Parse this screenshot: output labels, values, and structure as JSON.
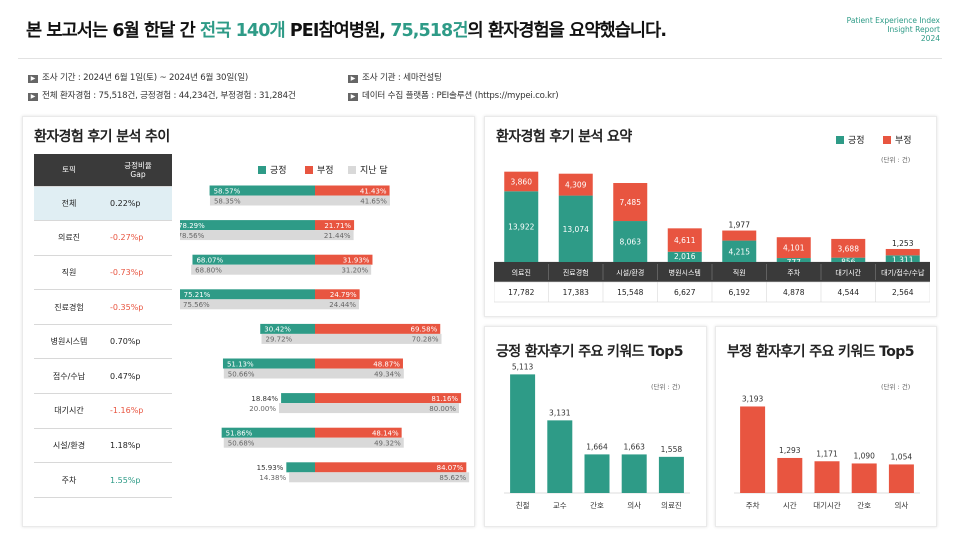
{
  "header": {
    "title_before": "본 보고서는 6월 한달 간 ",
    "title_hl1": "전국 140개",
    "title_mid": " PEI참여병원, ",
    "title_hl2": "75,518건",
    "title_after": "의 환자경험을 요약했습니다.",
    "brand_line1": "Patient Experience Index",
    "brand_line2": "Insight Report",
    "brand_line3": "2024"
  },
  "meta": {
    "period": "조사 기간 : 2024년 6월 1일(토) ~ 2024년 6월 30일(일)",
    "agency": "조사 기관 : 세마컨설팅",
    "totals": "전체 환자경험 : 75,518건, 긍정경험 : 44,234건, 부정경험 : 31,284건",
    "platform": "데이터 수집 플랫폼 : PEI솔루션 (https://mypei.co.kr)"
  },
  "colors": {
    "positive": "#2e9b87",
    "negative": "#e85540",
    "prev": "#d9d9d9",
    "header": "#3a3a3a"
  },
  "trend": {
    "title": "환자경험 후기 분석 추이",
    "col_topic": "토픽",
    "col_gap_line1": "긍정비율",
    "col_gap_line2": "Gap",
    "legend_pos": "긍정",
    "legend_neg": "부정",
    "legend_prev": "지난 달",
    "rows": [
      {
        "topic": "전체",
        "gap": "0.22%p",
        "cur_pos": 58.57,
        "cur_neg": 41.43,
        "prev_pos": 58.35,
        "prev_neg": 41.65,
        "cur_pos_label": "58.57%",
        "cur_neg_label": "41.43%",
        "prev_pos_label": "58.35%",
        "prev_neg_label": "41.65%"
      },
      {
        "topic": "의료진",
        "gap": "-0.27%p",
        "cur_pos": 78.29,
        "cur_neg": 21.71,
        "prev_pos": 78.56,
        "prev_neg": 21.44,
        "cur_pos_label": "78.29%",
        "cur_neg_label": "21.71%",
        "prev_pos_label": "78.56%",
        "prev_neg_label": "21.44%"
      },
      {
        "topic": "직원",
        "gap": "-0.73%p",
        "cur_pos": 68.07,
        "cur_neg": 31.93,
        "prev_pos": 68.8,
        "prev_neg": 31.2,
        "cur_pos_label": "68.07%",
        "cur_neg_label": "31.93%",
        "prev_pos_label": "68.80%",
        "prev_neg_label": "31.20%"
      },
      {
        "topic": "진료경험",
        "gap": "-0.35%p",
        "cur_pos": 75.21,
        "cur_neg": 24.79,
        "prev_pos": 75.56,
        "prev_neg": 24.44,
        "cur_pos_label": "75.21%",
        "cur_neg_label": "24.79%",
        "prev_pos_label": "75.56%",
        "prev_neg_label": "24.44%"
      },
      {
        "topic": "병원시스템",
        "gap": "0.70%p",
        "cur_pos": 30.42,
        "cur_neg": 69.58,
        "prev_pos": 29.72,
        "prev_neg": 70.28,
        "cur_pos_label": "30.42%",
        "cur_neg_label": "69.58%",
        "prev_pos_label": "29.72%",
        "prev_neg_label": "70.28%"
      },
      {
        "topic": "접수/수납",
        "gap": "0.47%p",
        "cur_pos": 51.13,
        "cur_neg": 48.87,
        "prev_pos": 50.66,
        "prev_neg": 49.34,
        "cur_pos_label": "51.13%",
        "cur_neg_label": "48.87%",
        "prev_pos_label": "50.66%",
        "prev_neg_label": "49.34%"
      },
      {
        "topic": "대기시간",
        "gap": "-1.16%p",
        "cur_pos": 18.84,
        "cur_neg": 81.16,
        "prev_pos": 20.0,
        "prev_neg": 80.0,
        "cur_pos_label": "18.84%",
        "cur_neg_label": "81.16%",
        "prev_pos_label": "20.00%",
        "prev_neg_label": "80.00%"
      },
      {
        "topic": "시설/환경",
        "gap": "1.18%p",
        "cur_pos": 51.86,
        "cur_neg": 48.14,
        "prev_pos": 50.68,
        "prev_neg": 49.32,
        "cur_pos_label": "51.86%",
        "cur_neg_label": "48.14%",
        "prev_pos_label": "50.68%",
        "prev_neg_label": "49.32%"
      },
      {
        "topic": "주차",
        "gap": "1.55%p",
        "cur_pos": 15.93,
        "cur_neg": 84.07,
        "prev_pos": 14.38,
        "prev_neg": 85.62,
        "cur_pos_label": "15.93%",
        "cur_neg_label": "84.07%",
        "prev_pos_label": "14.38%",
        "prev_neg_label": "85.62%"
      }
    ]
  },
  "summary": {
    "title": "환자경험 후기 분석 요약",
    "legend_pos": "긍정",
    "legend_neg": "부정",
    "unit": "(단위 : 건)"
  },
  "pos_keywords": {
    "title": "긍정 환자후기 주요 키워드 Top5",
    "unit": "(단위 : 건)"
  },
  "neg_keywords": {
    "title": "부정 환자후기 주요 키워드 Top5",
    "unit": "(단위 : 건)"
  },
  "chart_data": [
    {
      "type": "bar",
      "title": "환자경험 후기 분석 추이",
      "categories": [
        "전체",
        "의료진",
        "직원",
        "진료경험",
        "병원시스템",
        "접수/수납",
        "대기시간",
        "시설/환경",
        "주차"
      ],
      "series": [
        {
          "name": "긍정",
          "values": [
            58.57,
            78.29,
            68.07,
            75.21,
            30.42,
            51.13,
            18.84,
            51.86,
            15.93
          ]
        },
        {
          "name": "부정",
          "values": [
            41.43,
            21.71,
            31.93,
            24.79,
            69.58,
            48.87,
            81.16,
            48.14,
            84.07
          ]
        },
        {
          "name": "지난 달",
          "values": [
            58.35,
            78.56,
            68.8,
            75.56,
            29.72,
            50.66,
            20.0,
            50.68,
            14.38
          ]
        }
      ]
    },
    {
      "type": "bar",
      "title": "환자경험 후기 분석 요약",
      "categories": [
        "의료진",
        "진료경험",
        "시설/환경",
        "병원시스템",
        "직원",
        "주차",
        "대기시간",
        "대기/접수/수납"
      ],
      "series": [
        {
          "name": "긍정",
          "values": [
            13922,
            13074,
            8063,
            2016,
            4215,
            777,
            856,
            1311
          ]
        },
        {
          "name": "부정",
          "values": [
            3860,
            4309,
            7485,
            4611,
            1977,
            4101,
            3688,
            1253
          ]
        }
      ],
      "totals": [
        17782,
        17383,
        15548,
        6627,
        6192,
        4878,
        4544,
        2564
      ],
      "legend": "top-right"
    },
    {
      "type": "bar",
      "title": "긍정 환자후기 주요 키워드 Top5",
      "categories": [
        "친절",
        "교수",
        "간호",
        "의사",
        "의료진"
      ],
      "values": [
        5113,
        3131,
        1664,
        1663,
        1558
      ]
    },
    {
      "type": "bar",
      "title": "부정 환자후기 주요 키워드 Top5",
      "categories": [
        "주차",
        "시간",
        "대기시간",
        "간호",
        "의사"
      ],
      "values": [
        3193,
        1293,
        1171,
        1090,
        1054
      ]
    }
  ]
}
